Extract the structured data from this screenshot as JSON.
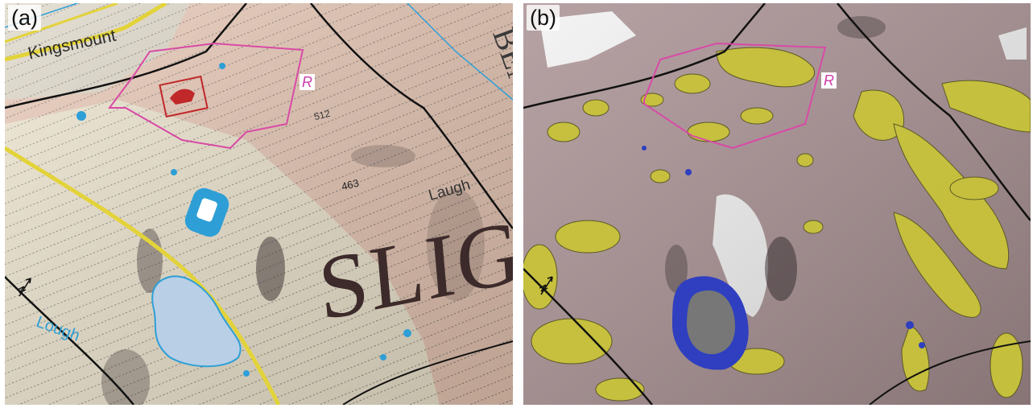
{
  "figure": {
    "panels": [
      {
        "id": "a",
        "label": "(a)",
        "region_marker": "R",
        "map_labels": {
          "town": "Kingsmount",
          "lake": "Lough",
          "spot_height_1": "463",
          "spot_height_2": "512",
          "hill": "Laugh",
          "county": "SLIG",
          "name_fragment": "BEN"
        },
        "colors": {
          "terrain_base": "#e8c7b4",
          "terrain_light": "#efe6cf",
          "contour_line": "#3a3a3a",
          "water": "#2e9fd6",
          "lake_fill": "#b8cfe6",
          "road": "#e3d33a",
          "boundary": "#d94aa6",
          "border_line": "#111111"
        },
        "icons": [
          "parking-icon",
          "bird-reserve-icon",
          "north-arrow-icon"
        ]
      },
      {
        "id": "b",
        "label": "(b)",
        "region_marker": "R",
        "colors": {
          "terrain_base": "#a99193",
          "highlight_patch": "#c8c33a",
          "lake_outline": "#2f3fbf",
          "lake_fill": "#777777",
          "boundary": "#d94aa6",
          "snow": "#f2f2f2",
          "border_line": "#111111"
        },
        "icons": [
          "north-arrow-icon"
        ]
      }
    ]
  }
}
